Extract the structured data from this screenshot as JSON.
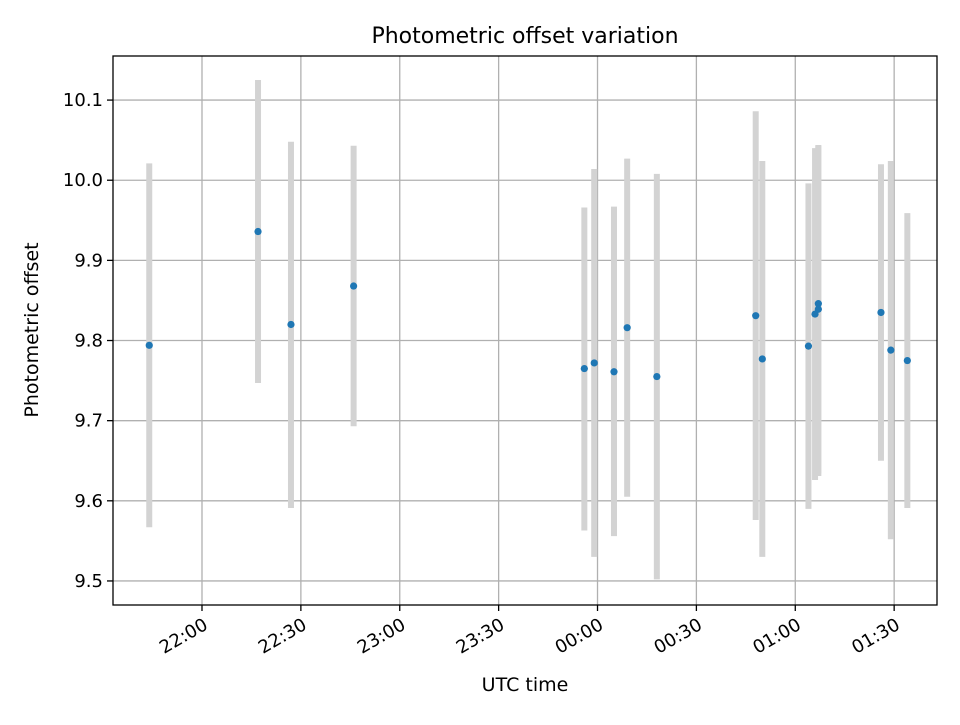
{
  "chart_data": {
    "type": "scatter",
    "title": "Photometric offset variation",
    "xlabel": "UTC time",
    "ylabel": "Photometric offset",
    "x_unit": "time (HH:MM, UTC)",
    "xlim": [
      "21:33",
      "01:43"
    ],
    "ylim": [
      9.47,
      10.155
    ],
    "grid": true,
    "yticks": [
      {
        "value": 9.5,
        "label": "9.5"
      },
      {
        "value": 9.6,
        "label": "9.6"
      },
      {
        "value": 9.7,
        "label": "9.7"
      },
      {
        "value": 9.8,
        "label": "9.8"
      },
      {
        "value": 9.9,
        "label": "9.9"
      },
      {
        "value": 10.0,
        "label": "10.0"
      },
      {
        "value": 10.1,
        "label": "10.1"
      }
    ],
    "xticks": [
      {
        "value": "22:00",
        "label": "22:00"
      },
      {
        "value": "22:30",
        "label": "22:30"
      },
      {
        "value": "23:00",
        "label": "23:00"
      },
      {
        "value": "23:30",
        "label": "23:30"
      },
      {
        "value": "00:00",
        "label": "00:00"
      },
      {
        "value": "00:30",
        "label": "00:30"
      },
      {
        "value": "01:00",
        "label": "01:00"
      },
      {
        "value": "01:30",
        "label": "01:30"
      }
    ],
    "point_color": "#1f77b4",
    "errorbar_color": "#d3d3d3",
    "points": [
      {
        "x": "21:44",
        "y": 9.794,
        "ylow": 9.567,
        "yhigh": 10.021
      },
      {
        "x": "22:17",
        "y": 9.936,
        "ylow": 9.747,
        "yhigh": 10.125
      },
      {
        "x": "22:27",
        "y": 9.82,
        "ylow": 9.591,
        "yhigh": 10.048
      },
      {
        "x": "22:46",
        "y": 9.868,
        "ylow": 9.693,
        "yhigh": 10.043
      },
      {
        "x": "23:56",
        "y": 9.765,
        "ylow": 9.563,
        "yhigh": 9.966
      },
      {
        "x": "23:59",
        "y": 9.772,
        "ylow": 9.53,
        "yhigh": 10.014
      },
      {
        "x": "00:05",
        "y": 9.761,
        "ylow": 9.556,
        "yhigh": 9.967
      },
      {
        "x": "00:09",
        "y": 9.816,
        "ylow": 9.605,
        "yhigh": 10.027
      },
      {
        "x": "00:18",
        "y": 9.755,
        "ylow": 9.502,
        "yhigh": 10.008
      },
      {
        "x": "00:48",
        "y": 9.831,
        "ylow": 9.576,
        "yhigh": 10.086
      },
      {
        "x": "00:50",
        "y": 9.777,
        "ylow": 9.53,
        "yhigh": 10.024
      },
      {
        "x": "01:04",
        "y": 9.793,
        "ylow": 9.59,
        "yhigh": 9.996
      },
      {
        "x": "01:06",
        "y": 9.833,
        "ylow": 9.626,
        "yhigh": 10.04
      },
      {
        "x": "01:07",
        "y": 9.846,
        "ylow": 9.631,
        "yhigh": 10.043
      },
      {
        "x": "01:07",
        "y": 9.839,
        "ylow": 9.634,
        "yhigh": 10.044
      },
      {
        "x": "01:26",
        "y": 9.835,
        "ylow": 9.65,
        "yhigh": 10.02
      },
      {
        "x": "01:29",
        "y": 9.788,
        "ylow": 9.552,
        "yhigh": 10.024
      },
      {
        "x": "01:34",
        "y": 9.775,
        "ylow": 9.591,
        "yhigh": 9.959
      }
    ]
  }
}
